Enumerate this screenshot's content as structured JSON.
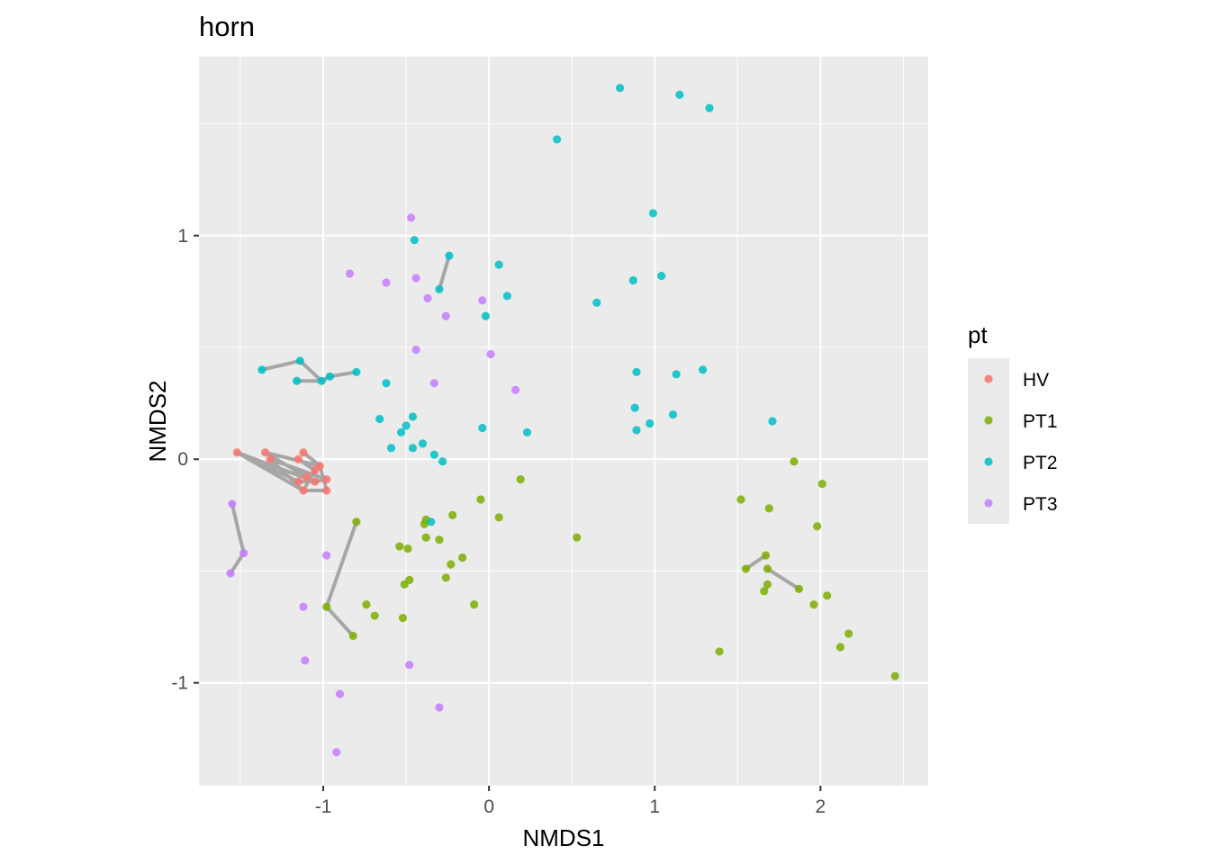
{
  "chart_data": {
    "type": "scatter",
    "title": "horn",
    "xlabel": "NMDS1",
    "ylabel": "NMDS2",
    "xlim": [
      -1.75,
      2.65
    ],
    "ylim": [
      -1.46,
      1.8
    ],
    "xticks": [
      -1,
      0,
      1,
      2
    ],
    "yticks": [
      -1,
      0,
      1
    ],
    "x_tick_labels": [
      "-1",
      "0",
      "1",
      "2"
    ],
    "y_tick_labels": [
      "-1",
      "0",
      "1"
    ],
    "grid": true,
    "legend": {
      "title": "pt",
      "placement": "right",
      "entries": [
        "HV",
        "PT1",
        "PT2",
        "PT3"
      ]
    },
    "colors": {
      "HV": "#F8766D",
      "PT1": "#7CAE00",
      "PT2": "#00BFC4",
      "PT3": "#C77CFF",
      "segment": "#A6A6A6",
      "panel": "#EBEBEB",
      "grid": "#FFFFFF"
    },
    "series": [
      {
        "name": "HV",
        "points": [
          [
            -1.52,
            0.03
          ],
          [
            -1.35,
            0.03
          ],
          [
            -1.32,
            0.0
          ],
          [
            -1.15,
            0.0
          ],
          [
            -1.12,
            0.03
          ],
          [
            -1.15,
            -0.1
          ],
          [
            -1.12,
            -0.14
          ],
          [
            -1.1,
            -0.08
          ],
          [
            -1.05,
            -0.05
          ],
          [
            -1.02,
            -0.03
          ],
          [
            -0.98,
            -0.09
          ],
          [
            -0.98,
            -0.14
          ],
          [
            -1.05,
            -0.1
          ]
        ]
      },
      {
        "name": "PT1",
        "points": [
          [
            -0.8,
            -0.28
          ],
          [
            -0.98,
            -0.66
          ],
          [
            -0.82,
            -0.79
          ],
          [
            -0.74,
            -0.65
          ],
          [
            -0.69,
            -0.7
          ],
          [
            -0.54,
            -0.39
          ],
          [
            -0.49,
            -0.4
          ],
          [
            -0.48,
            -0.54
          ],
          [
            -0.51,
            -0.56
          ],
          [
            -0.52,
            -0.71
          ],
          [
            -0.39,
            -0.29
          ],
          [
            -0.38,
            -0.27
          ],
          [
            -0.38,
            -0.35
          ],
          [
            -0.3,
            -0.36
          ],
          [
            -0.23,
            -0.47
          ],
          [
            -0.26,
            -0.53
          ],
          [
            -0.16,
            -0.44
          ],
          [
            -0.22,
            -0.25
          ],
          [
            -0.09,
            -0.65
          ],
          [
            -0.05,
            -0.18
          ],
          [
            0.06,
            -0.26
          ],
          [
            0.19,
            -0.09
          ],
          [
            0.53,
            -0.35
          ],
          [
            1.39,
            -0.86
          ],
          [
            1.52,
            -0.18
          ],
          [
            1.55,
            -0.49
          ],
          [
            1.67,
            -0.43
          ],
          [
            1.69,
            -0.22
          ],
          [
            1.68,
            -0.49
          ],
          [
            1.66,
            -0.59
          ],
          [
            1.68,
            -0.56
          ],
          [
            1.84,
            -0.01
          ],
          [
            1.87,
            -0.58
          ],
          [
            1.96,
            -0.65
          ],
          [
            1.98,
            -0.3
          ],
          [
            2.01,
            -0.11
          ],
          [
            2.04,
            -0.61
          ],
          [
            2.12,
            -0.84
          ],
          [
            2.17,
            -0.78
          ],
          [
            2.45,
            -0.97
          ]
        ]
      },
      {
        "name": "PT2",
        "points": [
          [
            -1.37,
            0.4
          ],
          [
            -1.14,
            0.44
          ],
          [
            -1.16,
            0.35
          ],
          [
            -1.01,
            0.35
          ],
          [
            -0.96,
            0.37
          ],
          [
            -0.8,
            0.39
          ],
          [
            -0.62,
            0.34
          ],
          [
            -0.66,
            0.18
          ],
          [
            -0.59,
            0.05
          ],
          [
            -0.53,
            0.12
          ],
          [
            -0.5,
            0.15
          ],
          [
            -0.46,
            0.19
          ],
          [
            -0.46,
            0.05
          ],
          [
            -0.4,
            0.07
          ],
          [
            -0.33,
            0.02
          ],
          [
            -0.28,
            -0.01
          ],
          [
            -0.35,
            -0.28
          ],
          [
            -0.45,
            0.98
          ],
          [
            -0.3,
            0.76
          ],
          [
            -0.24,
            0.91
          ],
          [
            -0.02,
            0.64
          ],
          [
            0.06,
            0.87
          ],
          [
            0.11,
            0.73
          ],
          [
            -0.04,
            0.14
          ],
          [
            0.23,
            0.12
          ],
          [
            0.41,
            1.43
          ],
          [
            0.65,
            0.7
          ],
          [
            0.79,
            1.66
          ],
          [
            0.87,
            0.8
          ],
          [
            0.89,
            0.39
          ],
          [
            0.88,
            0.23
          ],
          [
            0.89,
            0.13
          ],
          [
            0.97,
            0.16
          ],
          [
            0.99,
            1.1
          ],
          [
            1.04,
            0.82
          ],
          [
            1.11,
            0.2
          ],
          [
            1.13,
            0.38
          ],
          [
            1.15,
            1.63
          ],
          [
            1.29,
            0.4
          ],
          [
            1.33,
            1.57
          ],
          [
            1.71,
            0.17
          ]
        ]
      },
      {
        "name": "PT3",
        "points": [
          [
            -1.55,
            -0.2
          ],
          [
            -1.48,
            -0.42
          ],
          [
            -1.56,
            -0.51
          ],
          [
            -1.12,
            -0.66
          ],
          [
            -1.11,
            -0.9
          ],
          [
            -0.98,
            -0.43
          ],
          [
            -0.9,
            -1.05
          ],
          [
            -0.84,
            0.83
          ],
          [
            -0.92,
            -1.31
          ],
          [
            -0.62,
            0.79
          ],
          [
            -0.47,
            1.08
          ],
          [
            -0.44,
            0.81
          ],
          [
            -0.37,
            0.72
          ],
          [
            -0.44,
            0.49
          ],
          [
            -0.33,
            0.34
          ],
          [
            -0.26,
            0.64
          ],
          [
            -0.48,
            -0.92
          ],
          [
            -0.3,
            -1.11
          ],
          [
            -0.04,
            0.71
          ],
          [
            0.01,
            0.47
          ],
          [
            0.16,
            0.31
          ]
        ]
      }
    ],
    "segments": [
      [
        [
          -1.52,
          0.03
        ],
        [
          -1.12,
          -0.14
        ]
      ],
      [
        [
          -1.52,
          0.03
        ],
        [
          -1.05,
          -0.1
        ]
      ],
      [
        [
          -1.52,
          0.03
        ],
        [
          -1.15,
          -0.1
        ]
      ],
      [
        [
          -1.35,
          0.03
        ],
        [
          -1.02,
          -0.03
        ]
      ],
      [
        [
          -1.35,
          0.03
        ],
        [
          -1.1,
          -0.08
        ]
      ],
      [
        [
          -1.32,
          0.0
        ],
        [
          -0.98,
          -0.09
        ]
      ],
      [
        [
          -1.32,
          0.0
        ],
        [
          -1.12,
          -0.14
        ]
      ],
      [
        [
          -1.15,
          0.0
        ],
        [
          -1.05,
          -0.05
        ]
      ],
      [
        [
          -1.12,
          0.03
        ],
        [
          -1.02,
          -0.03
        ]
      ],
      [
        [
          -1.12,
          -0.14
        ],
        [
          -0.98,
          -0.14
        ]
      ],
      [
        [
          -1.12,
          -0.14
        ],
        [
          -1.05,
          -0.05
        ]
      ],
      [
        [
          -0.98,
          -0.14
        ],
        [
          -1.02,
          -0.03
        ]
      ],
      [
        [
          -0.98,
          -0.09
        ],
        [
          -1.05,
          -0.1
        ]
      ],
      [
        [
          -1.15,
          -0.1
        ],
        [
          -1.05,
          -0.1
        ]
      ],
      [
        [
          -1.37,
          0.4
        ],
        [
          -1.14,
          0.44
        ]
      ],
      [
        [
          -1.14,
          0.44
        ],
        [
          -1.01,
          0.35
        ]
      ],
      [
        [
          -1.16,
          0.35
        ],
        [
          -1.01,
          0.35
        ]
      ],
      [
        [
          -1.01,
          0.35
        ],
        [
          -0.96,
          0.37
        ]
      ],
      [
        [
          -0.96,
          0.37
        ],
        [
          -0.8,
          0.39
        ]
      ],
      [
        [
          -0.3,
          0.76
        ],
        [
          -0.24,
          0.91
        ]
      ],
      [
        [
          -1.55,
          -0.2
        ],
        [
          -1.48,
          -0.42
        ]
      ],
      [
        [
          -1.48,
          -0.42
        ],
        [
          -1.56,
          -0.51
        ]
      ],
      [
        [
          -0.8,
          -0.28
        ],
        [
          -0.98,
          -0.66
        ]
      ],
      [
        [
          -0.98,
          -0.66
        ],
        [
          -0.82,
          -0.79
        ]
      ],
      [
        [
          1.55,
          -0.49
        ],
        [
          1.67,
          -0.43
        ]
      ],
      [
        [
          1.68,
          -0.49
        ],
        [
          1.87,
          -0.58
        ]
      ]
    ]
  }
}
